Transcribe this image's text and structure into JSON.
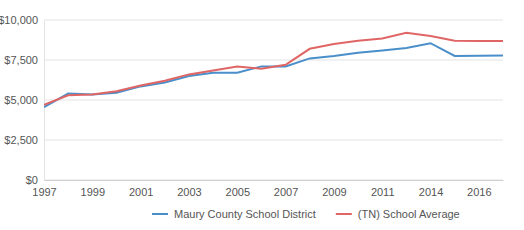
{
  "chart_data": {
    "type": "line",
    "categories": [
      "1997",
      null,
      "1999",
      null,
      "2001",
      null,
      "2003",
      null,
      "2005",
      null,
      "2007",
      null,
      "2009",
      null,
      "2011",
      null,
      "2014",
      null,
      "2016",
      null
    ],
    "series": [
      {
        "name": "Maury County School District",
        "color": "#4a8fc9",
        "values": [
          4550,
          5400,
          5350,
          5450,
          5850,
          6100,
          6500,
          6700,
          6700,
          7100,
          7100,
          7600,
          7750,
          7950,
          8100,
          8250,
          8550,
          7750,
          7760,
          7780
        ]
      },
      {
        "name": "(TN) School Average",
        "color": "#e06666",
        "values": [
          4700,
          5300,
          5350,
          5550,
          5900,
          6200,
          6600,
          6850,
          7100,
          6950,
          7200,
          8200,
          8500,
          8700,
          8850,
          9200,
          9000,
          8700,
          8680,
          8680
        ]
      }
    ],
    "ylim": [
      0,
      10000
    ],
    "yticks": [
      {
        "value": 0,
        "label": "$0"
      },
      {
        "value": 2500,
        "label": "$2,500"
      },
      {
        "value": 5000,
        "label": "$5,000"
      },
      {
        "value": 7500,
        "label": "$7,500"
      },
      {
        "value": 10000,
        "label": "$10,000"
      }
    ],
    "grid": true,
    "legend": "bottom"
  }
}
